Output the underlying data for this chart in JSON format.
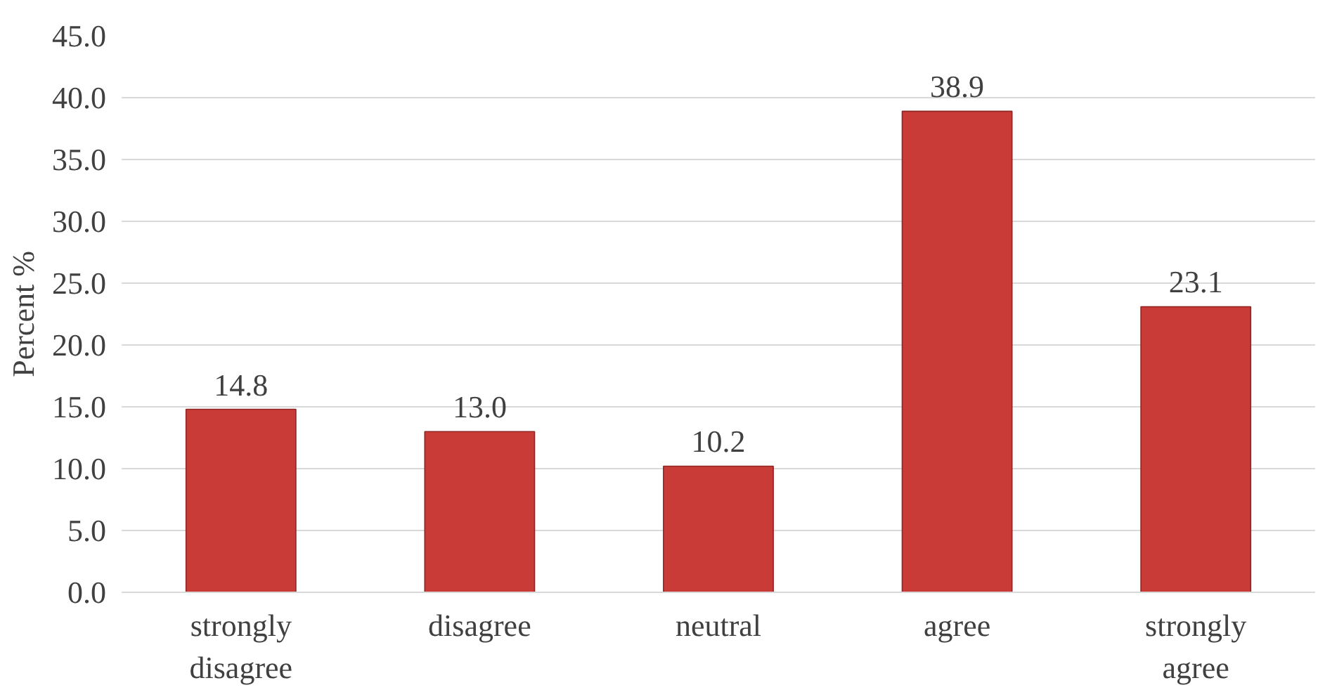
{
  "chart_data": {
    "type": "bar",
    "ylabel": "Percent %",
    "categories": [
      "strongly disagree",
      "disagree",
      "neutral",
      "agree",
      "strongly agree"
    ],
    "values": [
      14.8,
      13.0,
      10.2,
      38.9,
      23.1
    ],
    "value_labels": [
      "14.8",
      "13.0",
      "10.2",
      "38.9",
      "23.1"
    ],
    "color": "#c83b37",
    "ylim": [
      0,
      45
    ],
    "yticks": [
      {
        "value": 0,
        "label": "0.0"
      },
      {
        "value": 5,
        "label": "5.0"
      },
      {
        "value": 10,
        "label": "10.0"
      },
      {
        "value": 15,
        "label": "15.0"
      },
      {
        "value": 20,
        "label": "20.0"
      },
      {
        "value": 25,
        "label": "25.0"
      },
      {
        "value": 30,
        "label": "30.0"
      },
      {
        "value": 35,
        "label": "35.0"
      },
      {
        "value": 40,
        "label": "40.0"
      },
      {
        "value": 45,
        "label": "45.0"
      }
    ],
    "grid": "y"
  }
}
